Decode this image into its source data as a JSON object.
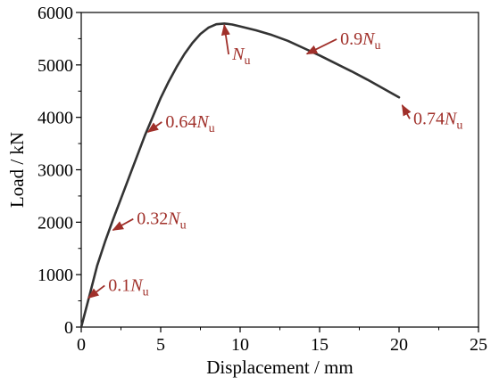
{
  "chart_data": {
    "type": "line",
    "title": "",
    "xlabel": "Displacement / mm",
    "ylabel": "Load / kN",
    "xlim": [
      0,
      25
    ],
    "ylim": [
      0,
      6000
    ],
    "xticks": [
      0,
      5,
      10,
      15,
      20,
      25
    ],
    "yticks": [
      0,
      1000,
      2000,
      3000,
      4000,
      5000,
      6000
    ],
    "grid": false,
    "series": [
      {
        "color": "#333333",
        "x": [
          0,
          0.5,
          1,
          1.5,
          2,
          2.5,
          3,
          3.5,
          4,
          4.5,
          5,
          5.5,
          6,
          6.5,
          7,
          7.5,
          8,
          8.5,
          9,
          9.5,
          10,
          11,
          12,
          13,
          14,
          15,
          16,
          17,
          18,
          19,
          20
        ],
        "y": [
          0,
          580,
          1170,
          1630,
          2050,
          2450,
          2850,
          3250,
          3650,
          4010,
          4370,
          4680,
          4960,
          5210,
          5420,
          5590,
          5710,
          5775,
          5790,
          5770,
          5735,
          5660,
          5570,
          5460,
          5320,
          5180,
          5030,
          4880,
          4720,
          4550,
          4380
        ]
      }
    ],
    "annotations": [
      {
        "prefix": "0.1",
        "symbol": "N",
        "sub": "u",
        "color": "#a0302a",
        "point": [
          0.45,
          555
        ],
        "label_at": [
          1.7,
          690
        ]
      },
      {
        "prefix": "0.32",
        "symbol": "N",
        "sub": "u",
        "color": "#a0302a",
        "point": [
          2.0,
          1850
        ],
        "label_at": [
          3.5,
          1960
        ]
      },
      {
        "prefix": "0.64",
        "symbol": "N",
        "sub": "u",
        "color": "#a0302a",
        "point": [
          4.2,
          3720
        ],
        "label_at": [
          5.3,
          3810
        ]
      },
      {
        "prefix": "",
        "symbol": "N",
        "sub": "u",
        "color": "#a0302a",
        "point": [
          9.0,
          5760
        ],
        "label_at": [
          9.5,
          5100
        ]
      },
      {
        "prefix": "0.9",
        "symbol": "N",
        "sub": "u",
        "color": "#a0302a",
        "point": [
          14.2,
          5210
        ],
        "label_at": [
          16.3,
          5390
        ]
      },
      {
        "prefix": "0.74",
        "symbol": "N",
        "sub": "u",
        "color": "#a0302a",
        "point": [
          20.2,
          4230
        ],
        "label_at": [
          20.9,
          3870
        ]
      }
    ]
  }
}
